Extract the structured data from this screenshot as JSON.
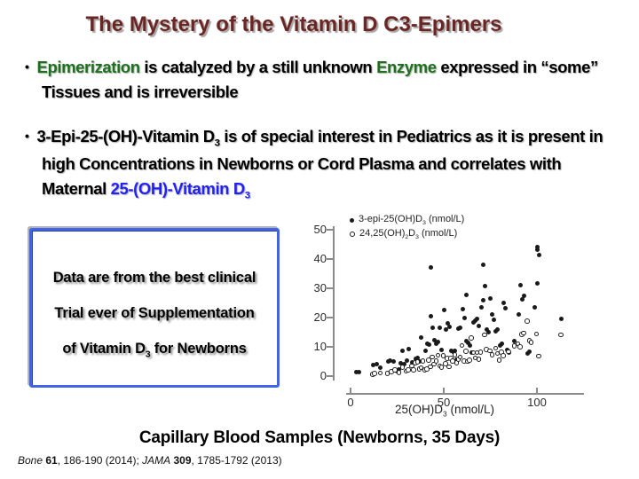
{
  "colors": {
    "title": "#6b2523",
    "green": "#1e701e",
    "blue": "#2121ff",
    "box_border": "#4063e8",
    "axis": "#8a8a8a",
    "point": "#1a1a1a"
  },
  "slide": {
    "title": "The Mystery of the Vitamin D C3-Epimers",
    "bullets": [
      {
        "segments": [
          {
            "text": "Epimerization",
            "color": "green"
          },
          {
            "text": " is catalyzed by a still unknown "
          },
          {
            "text": "Enzyme",
            "color": "green"
          },
          {
            "text": " expressed in “some” Tissues and is irreversible"
          }
        ]
      },
      {
        "segments": [
          {
            "text": "3-Epi-25-(OH)-Vitamin D"
          },
          {
            "text": "3",
            "sub": true
          },
          {
            "text": " is of special interest in Pediatrics as it is present in high Concentrations in Newborns or Cord Plasma and correlates with Maternal "
          },
          {
            "text": "25-(OH)-Vitamin D",
            "color": "blue"
          },
          {
            "text": "3",
            "sub": true,
            "color": "blue"
          }
        ]
      }
    ],
    "callout_box": {
      "lines": [
        [
          {
            "text": "Data are from the best clinical"
          }
        ],
        [
          {
            "text": "Trial ever of Supplementation"
          }
        ],
        [
          {
            "text": "of Vitamin D"
          },
          {
            "text": "3",
            "sub": true
          },
          {
            "text": " for Newborns"
          }
        ]
      ]
    },
    "caption": "Capillary Blood Samples (Newborns, 35 Days)",
    "footer_segments": [
      {
        "text": "Bone",
        "italic": true
      },
      {
        "text": " "
      },
      {
        "text": "61",
        "bold": true
      },
      {
        "text": ", 186-190 (2014); "
      },
      {
        "text": "JAMA",
        "italic": true
      },
      {
        "text": " "
      },
      {
        "text": "309",
        "bold": true
      },
      {
        "text": ", 1785-1792 (2013)"
      }
    ]
  },
  "chart_data": {
    "type": "scatter",
    "xlabel": "25(OH)D3 (nmol/L)",
    "xlabel_segments": [
      {
        "text": "25(OH)D"
      },
      {
        "text": "3",
        "sub": true
      },
      {
        "text": " (nmol/L)"
      }
    ],
    "ylabel": "",
    "x_ticks": [
      0,
      50,
      100
    ],
    "y_ticks": [
      0,
      10,
      20,
      30,
      40,
      50
    ],
    "xlim": [
      0,
      120
    ],
    "ylim": [
      0,
      50
    ],
    "grid": false,
    "legend_position": "top-left",
    "legend": [
      {
        "marker": "filled",
        "label": "3-epi-25(OH)D3 (nmol/L)",
        "label_segments": [
          {
            "text": "3-epi-25(OH)D"
          },
          {
            "text": "3",
            "sub": true
          },
          {
            "text": " (nmol/L)"
          }
        ]
      },
      {
        "marker": "open",
        "label": "24,25(OH)2D3 (nmol/L)",
        "label_segments": [
          {
            "text": "24,25(OH)"
          },
          {
            "text": "2",
            "sub": true
          },
          {
            "text": "D"
          },
          {
            "text": "3",
            "sub": true
          },
          {
            "text": " (nmol/L)"
          }
        ]
      }
    ],
    "series": [
      {
        "name": "3-epi-25(OH)D3 (nmol/L)",
        "marker": "filled",
        "points": [
          [
            3,
            1.3
          ],
          [
            4.5,
            1.4
          ],
          [
            12,
            3.9
          ],
          [
            14,
            4.1
          ],
          [
            16,
            3
          ],
          [
            20,
            5
          ],
          [
            21,
            5.2
          ],
          [
            23,
            5
          ],
          [
            25,
            1.8
          ],
          [
            26,
            2.2
          ],
          [
            27,
            4.5
          ],
          [
            28,
            8.7
          ],
          [
            29,
            4.2
          ],
          [
            30,
            5.2
          ],
          [
            31,
            9.2
          ],
          [
            33,
            4.8
          ],
          [
            35,
            6
          ],
          [
            36,
            6.3
          ],
          [
            37,
            5.1
          ],
          [
            38,
            13.2
          ],
          [
            40,
            8.6
          ],
          [
            41,
            11
          ],
          [
            42,
            10.7
          ],
          [
            43,
            20.6
          ],
          [
            43,
            37
          ],
          [
            44,
            16.6
          ],
          [
            45,
            12.4
          ],
          [
            46,
            11.2
          ],
          [
            47,
            11.6
          ],
          [
            48,
            16.4
          ],
          [
            49,
            9
          ],
          [
            50,
            22.6
          ],
          [
            51,
            16
          ],
          [
            52,
            18.1
          ],
          [
            53,
            16.7
          ],
          [
            54,
            8.6
          ],
          [
            55,
            8.4
          ],
          [
            56,
            8.7
          ],
          [
            57,
            5.6
          ],
          [
            58,
            16.1
          ],
          [
            59,
            16.4
          ],
          [
            60,
            22.9
          ],
          [
            61,
            20
          ],
          [
            62,
            12
          ],
          [
            62,
            27.6
          ],
          [
            63,
            11.4
          ],
          [
            64,
            10.6
          ],
          [
            65,
            8
          ],
          [
            66,
            18.4
          ],
          [
            67,
            19
          ],
          [
            68,
            19.6
          ],
          [
            69,
            17
          ],
          [
            70,
            23.4
          ],
          [
            71,
            26
          ],
          [
            71,
            37.9
          ],
          [
            72,
            30.9
          ],
          [
            73,
            16
          ],
          [
            74,
            14.9
          ],
          [
            75,
            26.6
          ],
          [
            76,
            21
          ],
          [
            77,
            19.1
          ],
          [
            78,
            15.4
          ],
          [
            79,
            15.9
          ],
          [
            80,
            10.4
          ],
          [
            81,
            11.1
          ],
          [
            82,
            25
          ],
          [
            83,
            23.1
          ],
          [
            84,
            8.9
          ],
          [
            85,
            8.1
          ],
          [
            88,
            12
          ],
          [
            90,
            21
          ],
          [
            91,
            31
          ],
          [
            92,
            26.1
          ],
          [
            93,
            27.4
          ],
          [
            95,
            7.6
          ],
          [
            96,
            8.2
          ],
          [
            99,
            23.6
          ],
          [
            100,
            31.6
          ],
          [
            100,
            43.1
          ],
          [
            100,
            44
          ],
          [
            101,
            41.4
          ],
          [
            113,
            19.4
          ]
        ]
      },
      {
        "name": "24,25(OH)2D3 (nmol/L)",
        "marker": "open",
        "points": [
          [
            12,
            0.5
          ],
          [
            13,
            0.8
          ],
          [
            16,
            1
          ],
          [
            20,
            0.9
          ],
          [
            22,
            1.5
          ],
          [
            24,
            2
          ],
          [
            26,
            1.1
          ],
          [
            28,
            3
          ],
          [
            30,
            1.6
          ],
          [
            31,
            2.1
          ],
          [
            33,
            3.4
          ],
          [
            34,
            2
          ],
          [
            35,
            4.4
          ],
          [
            36,
            4.8
          ],
          [
            37,
            2.4
          ],
          [
            38,
            2.8
          ],
          [
            39,
            5
          ],
          [
            40,
            2.1
          ],
          [
            41,
            2.3
          ],
          [
            42,
            5.4
          ],
          [
            43,
            3.1
          ],
          [
            44,
            6.4
          ],
          [
            45,
            4
          ],
          [
            46,
            5.1
          ],
          [
            47,
            7
          ],
          [
            48,
            3.4
          ],
          [
            49,
            2.9
          ],
          [
            50,
            6.9
          ],
          [
            51,
            4.1
          ],
          [
            52,
            5.9
          ],
          [
            53,
            3.1
          ],
          [
            54,
            6
          ],
          [
            55,
            5.1
          ],
          [
            56,
            7.1
          ],
          [
            57,
            4.4
          ],
          [
            58,
            5.6
          ],
          [
            59,
            6.4
          ],
          [
            60,
            10.4
          ],
          [
            61,
            5
          ],
          [
            62,
            8.4
          ],
          [
            63,
            4.9
          ],
          [
            64,
            5.3
          ],
          [
            65,
            13
          ],
          [
            66,
            7.9
          ],
          [
            67,
            6.1
          ],
          [
            68,
            8
          ],
          [
            69,
            5.6
          ],
          [
            70,
            8.1
          ],
          [
            72,
            14
          ],
          [
            73,
            9
          ],
          [
            75,
            8.6
          ],
          [
            76,
            7.1
          ],
          [
            78,
            9.4
          ],
          [
            79,
            7.6
          ],
          [
            80,
            5.4
          ],
          [
            81,
            8.1
          ],
          [
            82,
            6.9
          ],
          [
            85,
            8.3
          ],
          [
            88,
            10.3
          ],
          [
            90,
            11
          ],
          [
            91,
            9.9
          ],
          [
            92,
            14.1
          ],
          [
            93,
            14.6
          ],
          [
            95,
            18.7
          ],
          [
            96,
            12.1
          ],
          [
            97,
            11.4
          ],
          [
            100,
            14.3
          ],
          [
            101,
            6.7
          ],
          [
            113,
            14
          ]
        ]
      }
    ]
  }
}
